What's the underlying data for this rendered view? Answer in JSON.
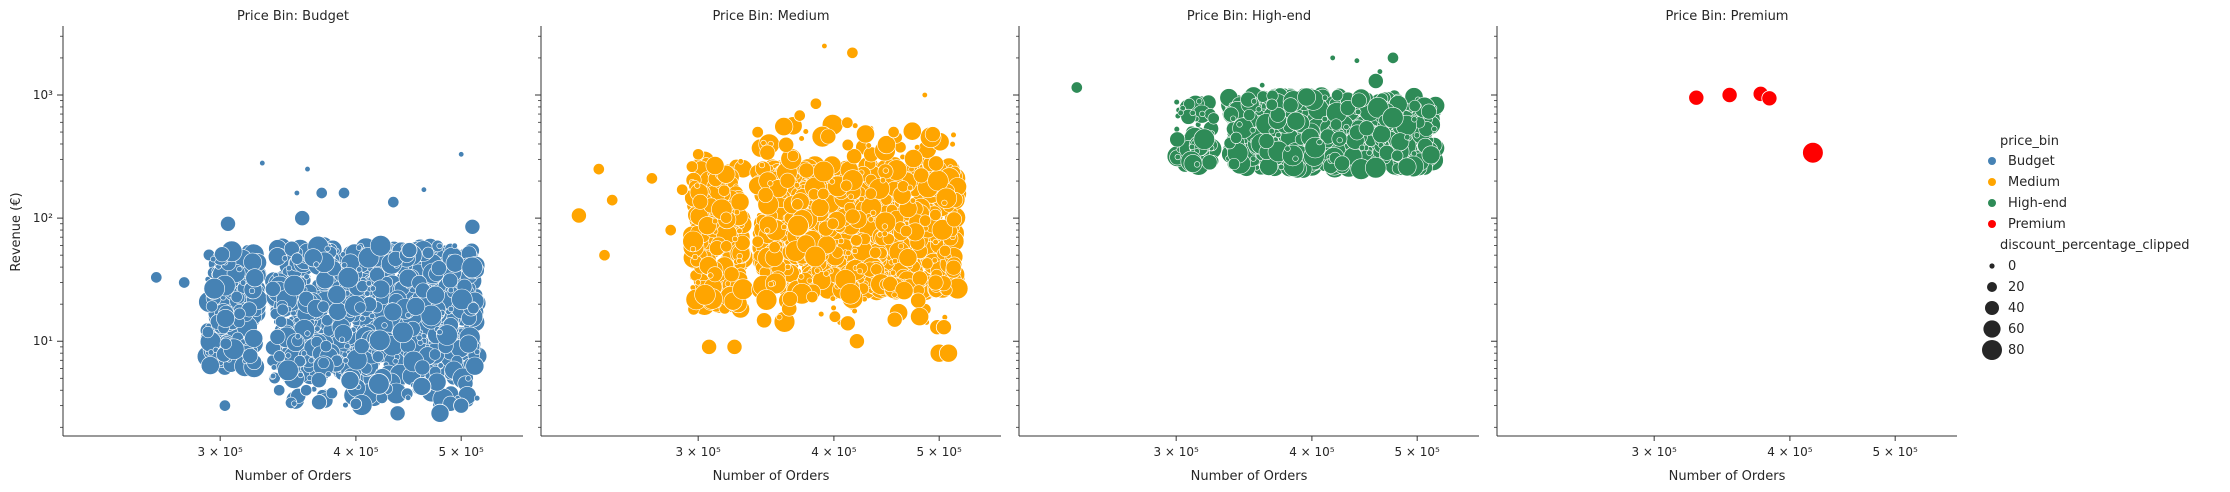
{
  "chart_data": {
    "type": "scatter",
    "x_label": "Number of Orders",
    "y_label": "Revenue (€)",
    "x_scale": "log",
    "y_scale": "log",
    "xlim": [
      215000,
      570000
    ],
    "ylim": [
      1.7,
      3500
    ],
    "x_ticks": [
      300000,
      400000,
      500000
    ],
    "x_tick_labels": [
      "3 × 10⁵",
      "4 × 10⁵",
      "5 × 10⁵"
    ],
    "y_ticks": [
      10,
      100,
      1000
    ],
    "y_tick_labels": [
      "10¹",
      "10²",
      "10³"
    ],
    "panels": [
      {
        "title": "Price Bin: Budget",
        "hue": "Budget",
        "color": "#4682b4",
        "points": [
          {
            "x": 262000,
            "y": 33,
            "s": 20
          },
          {
            "x": 278000,
            "y": 30,
            "s": 20
          },
          {
            "x": 305000,
            "y": 90,
            "s": 40
          },
          {
            "x": 328000,
            "y": 280,
            "s": 0
          },
          {
            "x": 353000,
            "y": 160,
            "s": 0
          },
          {
            "x": 357000,
            "y": 100,
            "s": 40
          },
          {
            "x": 361000,
            "y": 250,
            "s": 0
          },
          {
            "x": 372000,
            "y": 160,
            "s": 20
          },
          {
            "x": 390000,
            "y": 160,
            "s": 20
          },
          {
            "x": 433000,
            "y": 135,
            "s": 20
          },
          {
            "x": 462000,
            "y": 170,
            "s": 0
          },
          {
            "x": 500000,
            "y": 330,
            "s": 0
          },
          {
            "x": 303000,
            "y": 3,
            "s": 20
          },
          {
            "x": 340000,
            "y": 4,
            "s": 20
          },
          {
            "x": 360000,
            "y": 4,
            "s": 20
          },
          {
            "x": 370000,
            "y": 3.2,
            "s": 40
          },
          {
            "x": 400000,
            "y": 3.1,
            "s": 20
          },
          {
            "x": 437000,
            "y": 2.6,
            "s": 40
          },
          {
            "x": 478000,
            "y": 2.6,
            "s": 60
          },
          {
            "x": 500000,
            "y": 3.0,
            "s": 40
          },
          {
            "x": 420000,
            "y": 4.5,
            "s": 80
          },
          {
            "x": 460000,
            "y": 4.3,
            "s": 60
          },
          {
            "x": 395000,
            "y": 4.8,
            "s": 60
          },
          {
            "x": 512000,
            "y": 85,
            "s": 40
          },
          {
            "x": 448000,
            "y": 55,
            "s": 40
          }
        ],
        "clusters": [
          {
            "x_range": [
              292000,
              325000
            ],
            "y_range": [
              6,
              55
            ],
            "count": 220
          },
          {
            "x_range": [
              335000,
              518000
            ],
            "y_range": [
              5,
              60
            ],
            "count": 1000
          },
          {
            "x_range": [
              345000,
              518000
            ],
            "y_range": [
              3,
              12
            ],
            "count": 90
          }
        ]
      },
      {
        "title": "Price Bin: Medium",
        "hue": "Medium",
        "color": "#ffa500",
        "points": [
          {
            "x": 233000,
            "y": 105,
            "s": 40
          },
          {
            "x": 243000,
            "y": 250,
            "s": 20
          },
          {
            "x": 246000,
            "y": 50,
            "s": 20
          },
          {
            "x": 250000,
            "y": 140,
            "s": 20
          },
          {
            "x": 272000,
            "y": 210,
            "s": 20
          },
          {
            "x": 283000,
            "y": 80,
            "s": 20
          },
          {
            "x": 290000,
            "y": 170,
            "s": 20
          },
          {
            "x": 300000,
            "y": 330,
            "s": 20
          },
          {
            "x": 307000,
            "y": 9,
            "s": 40
          },
          {
            "x": 324000,
            "y": 9,
            "s": 40
          },
          {
            "x": 385000,
            "y": 850,
            "s": 20
          },
          {
            "x": 392000,
            "y": 2500,
            "s": 0
          },
          {
            "x": 416000,
            "y": 2200,
            "s": 20
          },
          {
            "x": 485000,
            "y": 1000,
            "s": 0
          },
          {
            "x": 372000,
            "y": 680,
            "s": 20
          },
          {
            "x": 454000,
            "y": 500,
            "s": 20
          },
          {
            "x": 500000,
            "y": 8,
            "s": 60
          },
          {
            "x": 510000,
            "y": 8,
            "s": 60
          },
          {
            "x": 498000,
            "y": 13,
            "s": 40
          },
          {
            "x": 505000,
            "y": 13,
            "s": 40
          },
          {
            "x": 420000,
            "y": 10,
            "s": 40
          },
          {
            "x": 412000,
            "y": 14,
            "s": 40
          },
          {
            "x": 455000,
            "y": 15,
            "s": 40
          }
        ],
        "clusters": [
          {
            "x_range": [
              296000,
              330000
            ],
            "y_range": [
              18,
              300
            ],
            "count": 280
          },
          {
            "x_range": [
              340000,
              520000
            ],
            "y_range": [
              25,
              280
            ],
            "count": 1100
          },
          {
            "x_range": [
              340000,
              520000
            ],
            "y_range": [
              300,
              600
            ],
            "count": 45
          },
          {
            "x_range": [
              345000,
              510000
            ],
            "y_range": [
              14,
              30
            ],
            "count": 40
          }
        ]
      },
      {
        "title": "Price Bin: High-end",
        "hue": "High-end",
        "color": "#2e8b57",
        "points": [
          {
            "x": 243000,
            "y": 1150,
            "s": 20
          },
          {
            "x": 360000,
            "y": 1200,
            "s": 0
          },
          {
            "x": 418000,
            "y": 2000,
            "s": 0
          },
          {
            "x": 440000,
            "y": 1900,
            "s": 0
          },
          {
            "x": 462000,
            "y": 1550,
            "s": 0
          },
          {
            "x": 475000,
            "y": 2000,
            "s": 20
          },
          {
            "x": 458000,
            "y": 1300,
            "s": 40
          }
        ],
        "clusters": [
          {
            "x_range": [
              300000,
              325000
            ],
            "y_range": [
              270,
              900
            ],
            "count": 70
          },
          {
            "x_range": [
              335000,
              520000
            ],
            "y_range": [
              250,
              1000
            ],
            "count": 700
          }
        ]
      },
      {
        "title": "Price Bin: Premium",
        "hue": "Premium",
        "color": "#ff0000",
        "points": [
          {
            "x": 328000,
            "y": 950,
            "s": 40
          },
          {
            "x": 352000,
            "y": 1000,
            "s": 40
          },
          {
            "x": 376000,
            "y": 1020,
            "s": 40
          },
          {
            "x": 383000,
            "y": 940,
            "s": 40
          },
          {
            "x": 420000,
            "y": 340,
            "s": 80
          }
        ],
        "clusters": []
      }
    ],
    "legend": {
      "placement": "right",
      "hue_title": "price_bin",
      "hue_entries": [
        {
          "label": "Budget",
          "color": "#4682b4"
        },
        {
          "label": "Medium",
          "color": "#ffa500"
        },
        {
          "label": "High-end",
          "color": "#2e8b57"
        },
        {
          "label": "Premium",
          "color": "#ff0000"
        }
      ],
      "size_title": "discount_percentage_clipped",
      "size_entries": [
        {
          "label": "0",
          "value": 0
        },
        {
          "label": "20",
          "value": 20
        },
        {
          "label": "40",
          "value": 40
        },
        {
          "label": "60",
          "value": 60
        },
        {
          "label": "80",
          "value": 80
        }
      ]
    }
  }
}
